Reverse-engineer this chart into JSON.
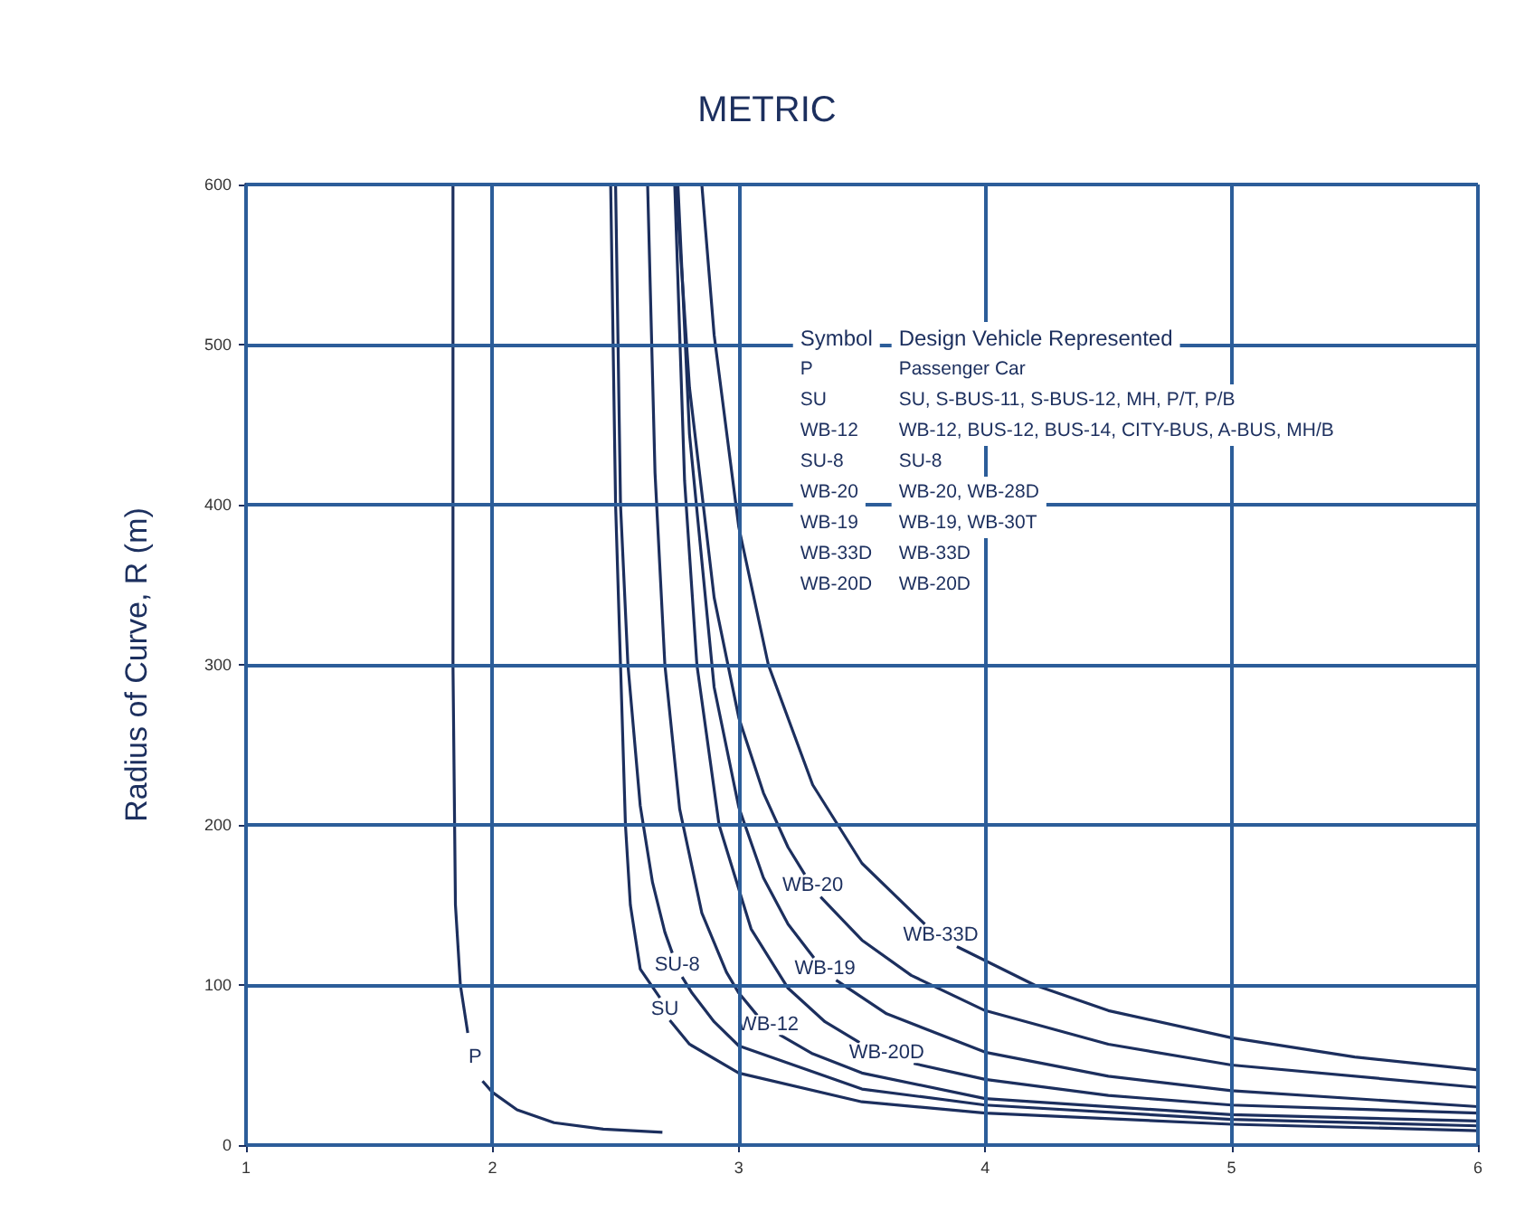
{
  "chart_data": {
    "type": "line",
    "title": "METRIC",
    "ylabel": "Radius of Curve, R (m)",
    "xlim": [
      1,
      6
    ],
    "xticks": [
      1,
      2,
      3,
      4,
      5,
      6
    ],
    "ylim": [
      0,
      600
    ],
    "yticks": [
      0,
      100,
      200,
      300,
      400,
      500,
      600
    ],
    "grid": true,
    "legend": false,
    "marker": "none",
    "line_style": "solid",
    "series": [
      {
        "name": "P",
        "color": "#1c2f5e",
        "x": [
          1.84,
          1.84,
          1.85,
          1.87,
          1.9,
          1.93,
          1.96,
          2.0,
          2.1,
          2.25,
          2.45,
          2.69
        ],
        "values": [
          600,
          300,
          150,
          100,
          70,
          null,
          40,
          33,
          22,
          14,
          10,
          8
        ]
      },
      {
        "name": "SU",
        "color": "#1c2f5e",
        "x": [
          2.48,
          2.5,
          2.52,
          2.54,
          2.56,
          2.6,
          2.68,
          2.7,
          2.72,
          2.8,
          3,
          3.5,
          4,
          5,
          6
        ],
        "values": [
          600,
          400,
          300,
          200,
          150,
          110,
          92,
          null,
          78,
          63,
          45,
          27,
          20,
          13,
          9
        ]
      },
      {
        "name": "SU-8",
        "color": "#1c2f5e",
        "x": [
          2.5,
          2.52,
          2.55,
          2.6,
          2.65,
          2.7,
          2.73,
          2.75,
          2.77,
          2.81,
          2.9,
          3,
          3.5,
          4,
          5,
          6
        ],
        "values": [
          600,
          400,
          300,
          212,
          164,
          133,
          120,
          null,
          105,
          95,
          77,
          62,
          35,
          25,
          16,
          12
        ]
      },
      {
        "name": "WB-12",
        "color": "#1c2f5e",
        "x": [
          2.63,
          2.66,
          2.7,
          2.76,
          2.85,
          2.95,
          3.0,
          3.075,
          3.12,
          3.165,
          3.3,
          3.5,
          4,
          5,
          6
        ],
        "values": [
          600,
          420,
          300,
          210,
          145,
          108,
          95,
          81,
          null,
          69,
          57,
          45,
          29,
          19,
          15
        ]
      },
      {
        "name": "WB-20D",
        "color": "#1c2f5e",
        "x": [
          2.74,
          2.78,
          2.83,
          2.92,
          3.05,
          3.2,
          3.35,
          3.49,
          3.6,
          3.71,
          4,
          4.5,
          5,
          6
        ],
        "values": [
          600,
          415,
          300,
          200,
          135,
          98,
          77,
          64,
          null,
          51,
          41,
          31,
          25,
          20
        ]
      },
      {
        "name": "WB-19",
        "color": "#1c2f5e",
        "x": [
          2.753,
          2.8,
          2.9,
          3.0,
          3.1,
          3.2,
          3.305,
          3.35,
          3.395,
          3.6,
          4,
          4.5,
          5,
          6
        ],
        "values": [
          600,
          444,
          286,
          211,
          167,
          138,
          117,
          null,
          103,
          82,
          58,
          43,
          34,
          24
        ]
      },
      {
        "name": "WB-20",
        "color": "#1c2f5e",
        "x": [
          2.745,
          2.8,
          2.9,
          3.0,
          3.1,
          3.2,
          3.268,
          3.3,
          3.332,
          3.5,
          3.7,
          4,
          4.5,
          5,
          6
        ],
        "values": [
          600,
          473,
          342,
          267,
          220,
          186,
          169,
          null,
          155,
          128,
          106,
          84,
          63,
          50,
          36
        ]
      },
      {
        "name": "WB-33D",
        "color": "#1c2f5e",
        "x": [
          2.85,
          2.9,
          3.0,
          3.12,
          3.3,
          3.5,
          3.755,
          3.82,
          3.885,
          4.2,
          4.5,
          5,
          5.5,
          6
        ],
        "values": [
          600,
          506,
          386,
          300,
          225,
          176,
          138,
          null,
          124,
          100,
          84,
          67,
          55,
          47
        ]
      }
    ],
    "annotations": [
      "Symbol",
      "Design Vehicle Represented",
      "P",
      "Passenger Car",
      "SU",
      "SU, S-BUS-11, S-BUS-12, MH, P/T, P/B",
      "WB-12",
      "WB-12, BUS-12, BUS-14, CITY-BUS, A-BUS, MH/B",
      "SU-8",
      "SU-8",
      "WB-20",
      "WB-20, WB-28D",
      "WB-19",
      "WB-19, WB-30T",
      "WB-33D",
      "WB-33D",
      "WB-20D",
      "WB-20D"
    ]
  }
}
